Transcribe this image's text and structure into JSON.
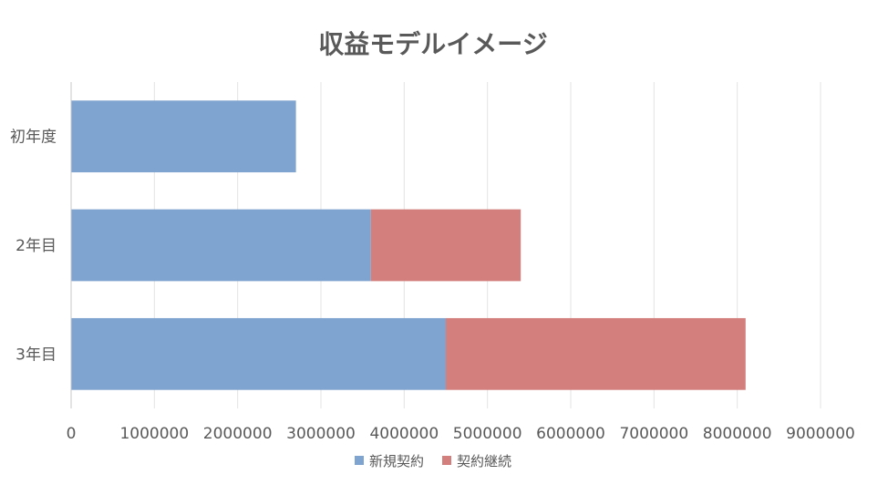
{
  "chart_data": {
    "type": "bar",
    "orientation": "horizontal",
    "stacked": true,
    "title": "収益モデルイメージ",
    "categories": [
      "初年度",
      "2年目",
      "3年目"
    ],
    "series": [
      {
        "name": "新規契約",
        "color": "#7fa4cf",
        "values": [
          2700000,
          3600000,
          4500000
        ]
      },
      {
        "name": "契約継続",
        "color": "#d37f7d",
        "values": [
          0,
          1800000,
          3600000
        ]
      }
    ],
    "xlim": [
      0,
      9000000
    ],
    "xticks": [
      "0",
      "1000000",
      "2000000",
      "3000000",
      "4000000",
      "5000000",
      "6000000",
      "7000000",
      "8000000",
      "9000000"
    ],
    "grid": true,
    "legend": "bottom"
  }
}
